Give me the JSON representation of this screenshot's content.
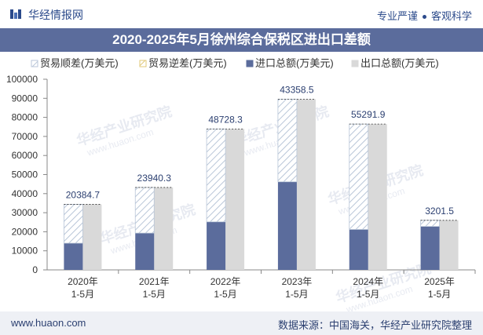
{
  "header": {
    "brand": "华经情报网",
    "tagline_left": "专业严谨",
    "tagline_right": "客观科学"
  },
  "footer": {
    "website": "www.huaon.com",
    "source": "数据来源：中国海关，华经产业研究院整理"
  },
  "colors": {
    "export": "#d9d9d9",
    "import": "#5b6c9c",
    "surplus_hatch": "#b9c6d8",
    "deficit_hatch": "#e0c97a",
    "title_bar": "#5b6c9c"
  },
  "chart_data": {
    "type": "bar",
    "title": "2020-2025年5月徐州综合保税区进出口差额",
    "categories": [
      "2020年\n1-5月",
      "2021年\n1-5月",
      "2022年\n1-5月",
      "2023年\n1-5月",
      "2024年\n1-5月",
      "2025年\n1-5月"
    ],
    "legend": [
      "贸易顺差(万美元)",
      "贸易逆差(万美元)",
      "进口总额(万美元)",
      "出口总额(万美元)"
    ],
    "series": [
      {
        "name": "贸易顺差(万美元)",
        "values": [
          20384.7,
          23940.3,
          48728.3,
          43358.5,
          55291.9,
          3201.5
        ]
      },
      {
        "name": "贸易逆差(万美元)",
        "values": [
          0,
          0,
          0,
          0,
          0,
          0
        ]
      },
      {
        "name": "进口总额(万美元)",
        "values": [
          14000,
          19300,
          25200,
          46200,
          21200,
          22800
        ]
      },
      {
        "name": "出口总额(万美元)",
        "values": [
          34384.7,
          43240.3,
          73928.3,
          89558.5,
          76491.9,
          26001.5
        ]
      }
    ],
    "data_labels": [
      "20384.7",
      "23940.3",
      "48728.3",
      "43358.5",
      "55291.9",
      "3201.5"
    ],
    "yticks": [
      0,
      10000,
      20000,
      30000,
      40000,
      50000,
      60000,
      70000,
      80000,
      90000,
      100000
    ],
    "ylim": [
      0,
      100000
    ],
    "xlabel": "",
    "ylabel": ""
  }
}
